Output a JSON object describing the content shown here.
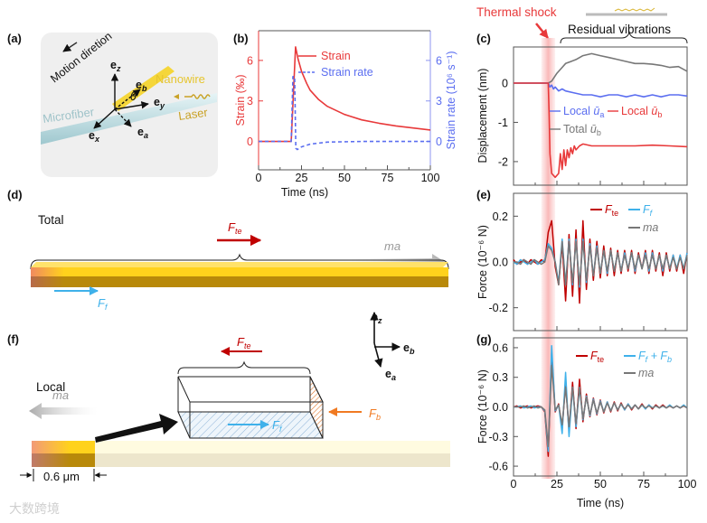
{
  "panel_labels": {
    "a": "(a)",
    "b": "(b)",
    "c": "(c)",
    "d": "(d)",
    "e": "(e)",
    "f": "(f)",
    "g": "(g)"
  },
  "diagram_a": {
    "motion": "Motion diretion",
    "nanowire": "Nanowire",
    "microfiber": "Microfiber",
    "laser": "Laser",
    "theta": "θ",
    "e": "e",
    "sub_z": "z",
    "sub_b": "b",
    "sub_y": "y",
    "sub_x": "x",
    "sub_a": "a",
    "colors": {
      "nanowire": "#f5d63a",
      "microfiber": "#cfe6ea",
      "laser": "#c9a227",
      "box": "#efefef"
    }
  },
  "diagram_d": {
    "title": "Total",
    "f": "F",
    "te": "te",
    "ff": "f",
    "ma": "ma"
  },
  "diagram_f": {
    "title": "Local",
    "f": "F",
    "te": "te",
    "ff": "f",
    "fb": "b",
    "ma": "ma",
    "scale": "0.6 μm",
    "e": "e",
    "sub_z": "z",
    "sub_b": "b",
    "sub_a": "a"
  },
  "annotations": {
    "thermal_shock": "Thermal shock",
    "residual_vibrations": "Residual vibrations",
    "shock_window_ns": [
      16,
      24
    ]
  },
  "watermark": "大数跨境",
  "colors": {
    "red": "#e8393a",
    "darkred": "#c00000",
    "blue": "#5b6ef0",
    "lightblue": "#3fb1ea",
    "gray": "#777777",
    "orange": "#f07a22",
    "pink": "#f8b4b4"
  },
  "chart_data": [
    {
      "id": "b",
      "type": "line",
      "xlabel": "Time (ns)",
      "ylabel": "Strain (‰)",
      "ylabel_right": "Strain rate (10⁶ s⁻¹)",
      "xlim": [
        0,
        100
      ],
      "ylim": [
        -2.1,
        8.2
      ],
      "xticks": [
        0,
        25,
        50,
        75,
        100
      ],
      "yticks": [
        0,
        3,
        6
      ],
      "yticks_right": [
        0,
        3,
        6
      ],
      "legend_position": "top-right",
      "series": [
        {
          "name": "Strain",
          "style": "solid",
          "color": "#e8393a",
          "x": [
            0,
            19,
            21.5,
            23,
            25,
            28,
            30,
            35,
            40,
            50,
            60,
            70,
            80,
            90,
            100
          ],
          "y": [
            0,
            0,
            7.0,
            6.1,
            5.2,
            4.3,
            3.8,
            3.1,
            2.6,
            2.0,
            1.6,
            1.35,
            1.15,
            1.0,
            0.85
          ]
        },
        {
          "name": "Strain rate",
          "style": "dashed",
          "color": "#5b6ef0",
          "axis": "right",
          "x": [
            0,
            19,
            20,
            21,
            21.7,
            22.5,
            25,
            30,
            40,
            60,
            100
          ],
          "y": [
            0,
            0,
            4.8,
            4.8,
            -0.5,
            -0.6,
            -0.4,
            -0.2,
            -0.05,
            0,
            0
          ]
        }
      ]
    },
    {
      "id": "c",
      "type": "line",
      "xlabel": "",
      "ylabel": "Displacement (nm)",
      "xlim": [
        0,
        100
      ],
      "ylim": [
        -2.6,
        0.92
      ],
      "xticks": [
        0,
        25,
        50,
        75,
        100
      ],
      "yticks": [
        0,
        -1,
        -2
      ],
      "legend_position": "center",
      "series": [
        {
          "name": "Total",
          "var": "ū",
          "sub": "b",
          "color": "#777777",
          "x": [
            0,
            20,
            22,
            25,
            28,
            30,
            33,
            36,
            40,
            45,
            50,
            55,
            60,
            65,
            70,
            75,
            80,
            85,
            90,
            95,
            100
          ],
          "y": [
            0,
            0,
            0.05,
            0.25,
            0.4,
            0.5,
            0.55,
            0.6,
            0.7,
            0.75,
            0.7,
            0.65,
            0.6,
            0.55,
            0.5,
            0.5,
            0.48,
            0.45,
            0.4,
            0.42,
            0.3
          ]
        },
        {
          "name": "Local",
          "var": "ū",
          "sub": "a",
          "color": "#5b6ef0",
          "x": [
            0,
            20,
            21,
            22,
            23,
            24,
            26,
            28,
            30,
            35,
            40,
            45,
            50,
            55,
            60,
            65,
            70,
            75,
            80,
            85,
            90,
            95,
            100
          ],
          "y": [
            0,
            0,
            -0.1,
            -0.05,
            -0.15,
            -0.1,
            -0.2,
            -0.15,
            -0.2,
            -0.25,
            -0.3,
            -0.3,
            -0.35,
            -0.3,
            -0.3,
            -0.35,
            -0.3,
            -0.35,
            -0.3,
            -0.35,
            -0.3,
            -0.3,
            -0.33
          ]
        },
        {
          "name": "Local",
          "var": "ū",
          "sub": "b",
          "color": "#e8393a",
          "x": [
            0,
            20,
            20.5,
            21,
            22,
            24,
            26,
            27,
            28,
            29,
            30,
            31,
            32,
            33,
            34,
            35,
            36,
            38,
            40,
            45,
            50,
            60,
            70,
            80,
            90,
            100
          ],
          "y": [
            0,
            0,
            -0.8,
            -1.8,
            -2.3,
            -2.4,
            -2.3,
            -1.8,
            -2.2,
            -1.7,
            -2.1,
            -1.7,
            -1.9,
            -1.65,
            -1.8,
            -1.6,
            -1.7,
            -1.6,
            -1.55,
            -1.6,
            -1.6,
            -1.6,
            -1.6,
            -1.58,
            -1.6,
            -1.62
          ]
        }
      ]
    },
    {
      "id": "e",
      "type": "line",
      "xlabel": "",
      "ylabel": "Force (10⁻⁶ N)",
      "xlim": [
        0,
        100
      ],
      "ylim": [
        -0.3,
        0.3
      ],
      "xticks": [
        0,
        25,
        50,
        75,
        100
      ],
      "yticks": [
        0.2,
        0.0,
        -0.2
      ],
      "ytick_labels": [
        "0.2",
        "0.0",
        "-0.2"
      ],
      "legend_position": "top-right",
      "x_start": 0,
      "x_step": 2,
      "series": [
        {
          "name": "F",
          "sub": "te",
          "color": "#c00000",
          "y": [
            0.01,
            -0.01,
            0.0,
            0.01,
            -0.01,
            0.01,
            0.0,
            -0.01,
            0.01,
            0.0,
            0.13,
            0.18,
            -0.02,
            -0.1,
            0.08,
            -0.17,
            0.12,
            -0.15,
            0.14,
            -0.18,
            0.18,
            -0.12,
            0.1,
            -0.08,
            0.09,
            -0.07,
            0.07,
            -0.06,
            0.06,
            -0.06,
            0.05,
            -0.05,
            0.05,
            -0.04,
            0.05,
            -0.05,
            0.04,
            -0.03,
            0.05,
            -0.05,
            0.05,
            -0.04,
            0.04,
            -0.06,
            0.04,
            -0.04,
            0.03,
            -0.04,
            0.03,
            -0.05,
            0.04
          ]
        },
        {
          "name": "F",
          "sub": "f",
          "color": "#3fb1ea",
          "y": [
            0.0,
            -0.01,
            0.01,
            0.0,
            -0.01,
            0.0,
            0.01,
            -0.01,
            0.0,
            0.01,
            0.08,
            0.06,
            0.0,
            -0.09,
            0.1,
            -0.1,
            0.1,
            -0.1,
            0.1,
            -0.11,
            0.1,
            -0.09,
            0.08,
            -0.06,
            0.07,
            -0.05,
            0.05,
            -0.05,
            0.05,
            -0.04,
            0.04,
            -0.04,
            0.04,
            -0.03,
            0.04,
            -0.04,
            0.03,
            -0.03,
            0.04,
            -0.04,
            0.04,
            -0.03,
            0.03,
            -0.04,
            0.03,
            -0.03,
            0.03,
            -0.03,
            0.03,
            -0.03,
            0.04
          ]
        },
        {
          "name": "ma",
          "color": "#777777",
          "y": [
            0.0,
            0.0,
            -0.01,
            0.01,
            0.0,
            -0.01,
            0.01,
            0.0,
            -0.01,
            0.0,
            0.07,
            0.05,
            0.0,
            -0.1,
            0.09,
            -0.1,
            0.09,
            -0.09,
            0.09,
            -0.1,
            0.09,
            -0.08,
            0.07,
            -0.06,
            0.06,
            -0.05,
            0.05,
            -0.04,
            0.05,
            -0.04,
            0.04,
            -0.04,
            0.03,
            -0.03,
            0.04,
            -0.03,
            0.03,
            -0.03,
            0.03,
            -0.03,
            0.03,
            -0.03,
            0.03,
            -0.03,
            0.03,
            -0.03,
            0.02,
            -0.03,
            0.02,
            -0.03,
            0.03
          ]
        }
      ]
    },
    {
      "id": "g",
      "type": "line",
      "xlabel": "Time (ns)",
      "ylabel": "Force (10⁻⁶ N)",
      "xlim": [
        0,
        100
      ],
      "ylim": [
        -0.7,
        0.7
      ],
      "xticks": [
        0,
        25,
        50,
        75,
        100
      ],
      "yticks": [
        0.6,
        0.3,
        0.0,
        -0.3,
        -0.6
      ],
      "ytick_labels": [
        "0.6",
        "0.3",
        "0.0",
        "-0.3",
        "-0.6"
      ],
      "legend_position": "top-right",
      "x_start": 0,
      "x_step": 2,
      "series": [
        {
          "name": "F",
          "sub": "te",
          "color": "#c00000",
          "y": [
            0,
            0.01,
            -0.01,
            0,
            0.01,
            -0.01,
            0,
            0.01,
            0,
            -0.05,
            -0.5,
            0.55,
            -0.05,
            0.03,
            -0.22,
            0.25,
            -0.25,
            0.25,
            -0.22,
            0.28,
            -0.15,
            0.13,
            -0.1,
            0.09,
            -0.08,
            0.07,
            -0.06,
            0.05,
            -0.05,
            0.05,
            -0.04,
            0.04,
            -0.03,
            0.03,
            -0.03,
            0.02,
            -0.02,
            0.03,
            -0.02,
            0.02,
            -0.02,
            0.02,
            -0.01,
            0.02,
            -0.01,
            0.01,
            -0.01,
            0.01,
            -0.01,
            0.01,
            -0.01
          ]
        },
        {
          "name": "F_f + F_b",
          "label_parts": [
            "F",
            "f",
            " + F",
            "b"
          ],
          "color": "#3fb1ea",
          "y": [
            0,
            0,
            0.01,
            -0.01,
            0,
            0.01,
            -0.01,
            0,
            0,
            -0.04,
            -0.45,
            0.62,
            -0.04,
            0.02,
            -0.27,
            0.35,
            -0.3,
            0.2,
            -0.2,
            0.2,
            -0.13,
            0.11,
            -0.09,
            0.08,
            -0.07,
            0.06,
            -0.05,
            0.05,
            -0.04,
            0.04,
            -0.03,
            0.03,
            -0.03,
            0.03,
            -0.02,
            0.02,
            -0.02,
            0.02,
            -0.02,
            0.02,
            -0.01,
            0.01,
            -0.01,
            0.01,
            -0.01,
            0.02,
            -0.01,
            0.01,
            -0.01,
            0.02,
            -0.01
          ]
        },
        {
          "name": "ma",
          "color": "#777777",
          "y": [
            0,
            0,
            0,
            0.01,
            -0.01,
            0,
            0.01,
            -0.01,
            0,
            -0.03,
            -0.4,
            0.42,
            -0.03,
            0.02,
            -0.18,
            0.2,
            -0.2,
            0.2,
            -0.17,
            0.2,
            -0.12,
            0.1,
            -0.08,
            0.07,
            -0.06,
            0.05,
            -0.05,
            0.04,
            -0.04,
            0.04,
            -0.03,
            0.03,
            -0.02,
            0.02,
            -0.02,
            0.02,
            -0.02,
            0.02,
            -0.01,
            0.01,
            -0.01,
            0.01,
            -0.01,
            0.01,
            -0.01,
            0.01,
            -0.01,
            0.01,
            -0.01,
            0.01,
            -0.01
          ]
        }
      ]
    }
  ]
}
